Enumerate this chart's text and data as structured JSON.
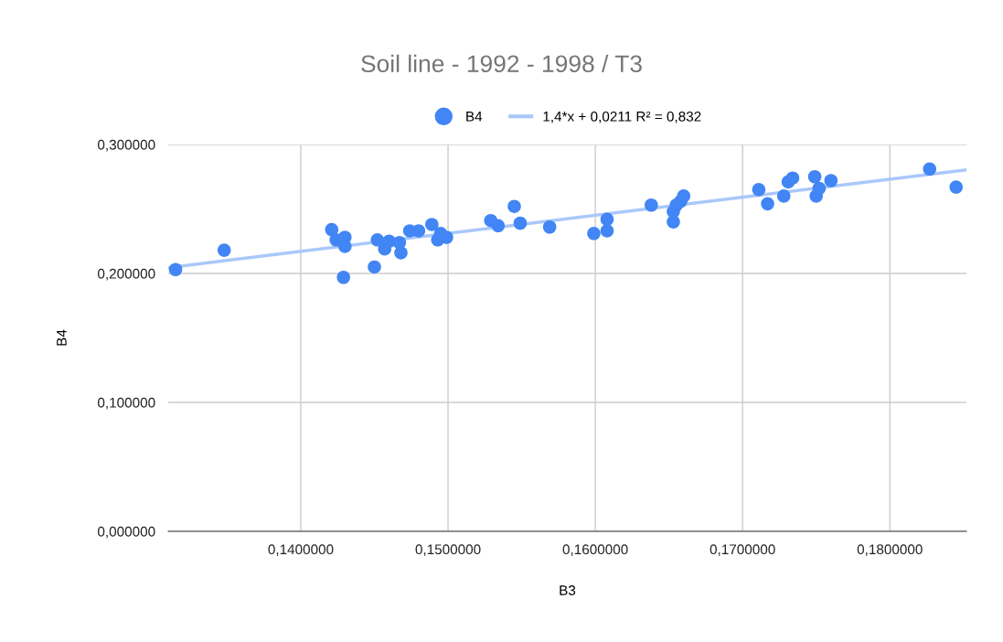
{
  "chart_data": {
    "type": "scatter",
    "title": "Soil line - 1992 - 1998 / T3",
    "xlabel": "B3",
    "ylabel": "B4",
    "xlim": [
      0.131,
      0.1852
    ],
    "ylim": [
      0,
      0.3
    ],
    "xticks": [
      {
        "value": 0.14,
        "label": "0,1400000"
      },
      {
        "value": 0.15,
        "label": "0,1500000"
      },
      {
        "value": 0.16,
        "label": "0,1600000"
      },
      {
        "value": 0.17,
        "label": "0,1700000"
      },
      {
        "value": 0.18,
        "label": "0,1800000"
      }
    ],
    "yticks": [
      {
        "value": 0,
        "label": "0,000000"
      },
      {
        "value": 0.1,
        "label": "0,100000"
      },
      {
        "value": 0.2,
        "label": "0,200000"
      },
      {
        "value": 0.3,
        "label": "0,300000"
      }
    ],
    "grid": true,
    "legend": "top",
    "series": [
      {
        "name": "B4",
        "marker": "circle",
        "color": "#4285f4",
        "x": [
          0.1315,
          0.1348,
          0.1421,
          0.1424,
          0.143,
          0.143,
          0.1429,
          0.145,
          0.1452,
          0.1457,
          0.146,
          0.1467,
          0.1468,
          0.1474,
          0.148,
          0.1489,
          0.1493,
          0.1495,
          0.1499,
          0.1529,
          0.1534,
          0.1545,
          0.1549,
          0.1569,
          0.1599,
          0.1608,
          0.1608,
          0.1638,
          0.1653,
          0.1653,
          0.1655,
          0.1658,
          0.166,
          0.1711,
          0.1717,
          0.1728,
          0.1731,
          0.1734,
          0.1749,
          0.175,
          0.1752,
          0.176,
          0.1827,
          0.1845
        ],
        "values": [
          0.203,
          0.218,
          0.234,
          0.226,
          0.228,
          0.221,
          0.197,
          0.205,
          0.226,
          0.219,
          0.225,
          0.224,
          0.216,
          0.233,
          0.233,
          0.238,
          0.226,
          0.231,
          0.228,
          0.241,
          0.237,
          0.252,
          0.239,
          0.236,
          0.231,
          0.233,
          0.242,
          0.253,
          0.24,
          0.248,
          0.253,
          0.256,
          0.26,
          0.265,
          0.254,
          0.26,
          0.271,
          0.274,
          0.275,
          0.26,
          0.266,
          0.272,
          0.281,
          0.267
        ]
      },
      {
        "name": "1,4*x + 0,0211 R² = 0,832",
        "type": "line",
        "marker": "none",
        "color": "#a9c8fa",
        "x": [
          0.131,
          0.1852
        ],
        "values": [
          0.2045,
          0.2804
        ]
      }
    ]
  }
}
